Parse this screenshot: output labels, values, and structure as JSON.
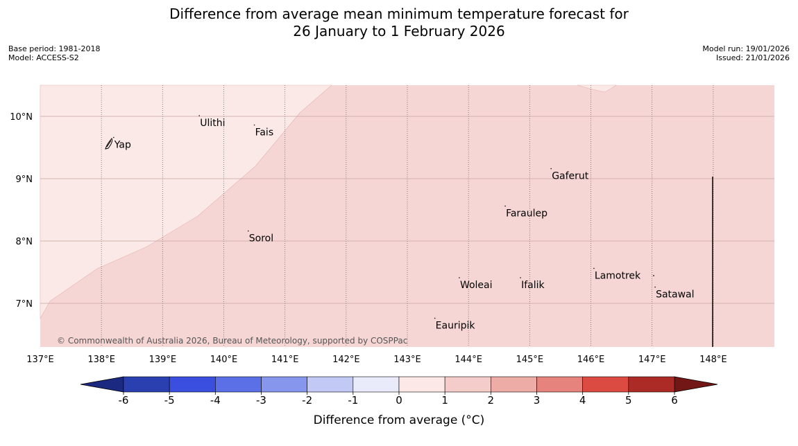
{
  "title": {
    "line1": "Difference from average mean minimum temperature forecast for",
    "line2": "26 January to 1 February 2026"
  },
  "meta": {
    "base_period": "Base period: 1981-2018",
    "model": "Model: ACCESS-S2",
    "model_run": "Model run: 19/01/2026",
    "issued": "Issued: 21/01/2026"
  },
  "map": {
    "lon_range": [
      137,
      149
    ],
    "lat_range": [
      6.3,
      10.5
    ],
    "lon_ticks": [
      "137°E",
      "138°E",
      "139°E",
      "140°E",
      "141°E",
      "142°E",
      "143°E",
      "144°E",
      "145°E",
      "146°E",
      "147°E",
      "148°E"
    ],
    "lat_ticks": [
      "10°N",
      "9°N",
      "8°N",
      "7°N"
    ],
    "background_color": "#f5d6d4",
    "light_region_color": "#fbe9e7",
    "places": [
      {
        "name": "Yap",
        "lon": 138.2,
        "lat": 9.55
      },
      {
        "name": "Ulithi",
        "lon": 139.6,
        "lat": 9.9
      },
      {
        "name": "Fais",
        "lon": 140.5,
        "lat": 9.75
      },
      {
        "name": "Sorol",
        "lon": 140.4,
        "lat": 8.05
      },
      {
        "name": "Gaferut",
        "lon": 145.35,
        "lat": 9.05
      },
      {
        "name": "Faraulep",
        "lon": 144.6,
        "lat": 8.45
      },
      {
        "name": "Woleai",
        "lon": 143.85,
        "lat": 7.3
      },
      {
        "name": "Ifalik",
        "lon": 144.85,
        "lat": 7.3
      },
      {
        "name": "Lamotrek",
        "lon": 146.05,
        "lat": 7.45
      },
      {
        "name": "Satawal",
        "lon": 147.05,
        "lat": 7.15
      },
      {
        "name": "Eauripik",
        "lon": 143.45,
        "lat": 6.65
      }
    ],
    "copyright": "© Commonwealth of Australia 2026, Bureau of Meteorology, supported by COSPPac"
  },
  "colorbar": {
    "labels": [
      "-6",
      "-5",
      "-4",
      "-3",
      "-2",
      "-1",
      "0",
      "1",
      "2",
      "3",
      "4",
      "5",
      "6"
    ],
    "under_color": "#1b2a80",
    "over_color": "#731616",
    "colors": [
      "#2a3fb0",
      "#3a4fdf",
      "#5b6fe6",
      "#8596ec",
      "#c2c9f4",
      "#e9ebfb",
      "#fce8e6",
      "#f4cdca",
      "#eeaca7",
      "#e7837d",
      "#dc4b42",
      "#ad2b26"
    ],
    "title": "Difference from average (°C)"
  }
}
